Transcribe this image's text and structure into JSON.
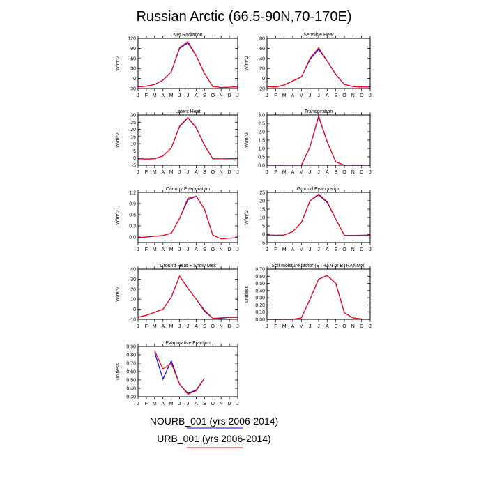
{
  "title": "Russian Arctic (66.5-90N,70-170E)",
  "month_labels": [
    "J",
    "F",
    "M",
    "A",
    "M",
    "J",
    "J",
    "A",
    "S",
    "O",
    "N",
    "D",
    "J"
  ],
  "colors": {
    "series_a": "#0000ff",
    "series_b": "#ff0000",
    "axis": "#000000"
  },
  "legend": [
    {
      "label": "NOURB_001 (yrs 2006-2014)",
      "color": "#0000ff"
    },
    {
      "label": "URB_001 (yrs 2006-2014)",
      "color": "#ff0000"
    }
  ],
  "chart_data": [
    {
      "type": "line",
      "title": "Net Radiation",
      "ylabel": "W/m^2",
      "ylim": [
        -30,
        120
      ],
      "yticks": [
        {
          "v": -30,
          "t": "-30"
        },
        {
          "v": 0,
          "t": "0"
        },
        {
          "v": 30,
          "t": "30"
        },
        {
          "v": 60,
          "t": "60"
        },
        {
          "v": 90,
          "t": "90"
        },
        {
          "v": 120,
          "t": "120"
        }
      ],
      "x": [
        1,
        2,
        3,
        4,
        5,
        6,
        7,
        8,
        9,
        10,
        11,
        12,
        13
      ],
      "series": [
        {
          "name": "NOURB_001 (yrs 2006-2014)",
          "color": "#0000ff",
          "values": [
            -25,
            -23,
            -18,
            -5,
            20,
            90,
            106,
            68,
            15,
            -24,
            -27,
            -26,
            -25
          ]
        },
        {
          "name": "URB_001 (yrs 2006-2014)",
          "color": "#ff0000",
          "values": [
            -25,
            -23,
            -18,
            -5,
            20,
            92,
            110,
            68,
            15,
            -24,
            -27,
            -26,
            -25
          ]
        }
      ]
    },
    {
      "type": "line",
      "title": "Sensible Heat",
      "ylabel": "W/m^2",
      "ylim": [
        -20,
        80
      ],
      "yticks": [
        {
          "v": -20,
          "t": "-20"
        },
        {
          "v": 0,
          "t": "0"
        },
        {
          "v": 20,
          "t": "20"
        },
        {
          "v": 40,
          "t": "40"
        },
        {
          "v": 60,
          "t": "60"
        },
        {
          "v": 80,
          "t": "80"
        }
      ],
      "x": [
        1,
        2,
        3,
        4,
        5,
        6,
        7,
        8,
        9,
        10,
        11,
        12,
        13
      ],
      "series": [
        {
          "name": "NOURB_001 (yrs 2006-2014)",
          "color": "#0000ff",
          "values": [
            -16,
            -17,
            -13,
            -5,
            3,
            38,
            58,
            35,
            8,
            -12,
            -16,
            -17,
            -17
          ]
        },
        {
          "name": "URB_001 (yrs 2006-2014)",
          "color": "#ff0000",
          "values": [
            -16,
            -17,
            -13,
            -5,
            3,
            40,
            61,
            35,
            8,
            -12,
            -16,
            -17,
            -17
          ]
        }
      ]
    },
    {
      "type": "line",
      "title": "Latent Heat",
      "ylabel": "W/m^2",
      "ylim": [
        -5,
        30
      ],
      "yticks": [
        {
          "v": -5,
          "t": "-5"
        },
        {
          "v": 0,
          "t": "0"
        },
        {
          "v": 5,
          "t": "5"
        },
        {
          "v": 10,
          "t": "10"
        },
        {
          "v": 15,
          "t": "15"
        },
        {
          "v": 20,
          "t": "20"
        },
        {
          "v": 25,
          "t": "25"
        },
        {
          "v": 30,
          "t": "30"
        }
      ],
      "x": [
        1,
        2,
        3,
        4,
        5,
        6,
        7,
        8,
        9,
        10,
        11,
        12,
        13
      ],
      "series": [
        {
          "name": "NOURB_001 (yrs 2006-2014)",
          "color": "#0000ff",
          "values": [
            -0.5,
            -0.7,
            -0.5,
            1.5,
            7,
            22,
            28,
            21,
            9,
            -0.5,
            -0.6,
            -0.5,
            -0.4
          ]
        },
        {
          "name": "URB_001 (yrs 2006-2014)",
          "color": "#ff0000",
          "values": [
            -0.5,
            -0.7,
            -0.5,
            1.5,
            7,
            22.3,
            28.3,
            21.3,
            9,
            -0.5,
            -0.6,
            -0.5,
            -0.4
          ]
        }
      ]
    },
    {
      "type": "line",
      "title": "Transpiration",
      "ylabel": "W/m^2",
      "ylim": [
        0,
        3
      ],
      "yticks": [
        {
          "v": 0,
          "t": "0.0"
        },
        {
          "v": 0.5,
          "t": "0.5"
        },
        {
          "v": 1,
          "t": "1.0"
        },
        {
          "v": 1.5,
          "t": "1.5"
        },
        {
          "v": 2,
          "t": "2.0"
        },
        {
          "v": 2.5,
          "t": "2.5"
        },
        {
          "v": 3,
          "t": "3.0"
        }
      ],
      "x": [
        1,
        2,
        3,
        4,
        5,
        6,
        7,
        8,
        9,
        10,
        11,
        12,
        13
      ],
      "series": [
        {
          "name": "NOURB_001 (yrs 2006-2014)",
          "color": "#0000ff",
          "values": [
            0,
            0,
            0,
            0,
            0,
            1.1,
            2.9,
            1.4,
            0.2,
            0,
            0,
            0,
            0
          ]
        },
        {
          "name": "URB_001 (yrs 2006-2014)",
          "color": "#ff0000",
          "values": [
            0,
            0,
            0,
            0,
            0,
            1.1,
            2.95,
            1.4,
            0.2,
            0,
            0,
            0,
            0
          ]
        }
      ]
    },
    {
      "type": "line",
      "title": "Canopy Evaporation",
      "ylabel": "W/m^2",
      "ylim": [
        -0.15,
        1.2
      ],
      "yticks": [
        {
          "v": 0,
          "t": "0.0"
        },
        {
          "v": 0.3,
          "t": "0.3"
        },
        {
          "v": 0.6,
          "t": "0.6"
        },
        {
          "v": 0.9,
          "t": "0.9"
        },
        {
          "v": 1.2,
          "t": "1.2"
        }
      ],
      "x": [
        1,
        2,
        3,
        4,
        5,
        6,
        7,
        8,
        9,
        10,
        11,
        12,
        13
      ],
      "series": [
        {
          "name": "NOURB_001 (yrs 2006-2014)",
          "color": "#0000ff",
          "values": [
            -0.02,
            0,
            0.02,
            0.04,
            0.1,
            0.5,
            1.0,
            1.1,
            0.75,
            0.05,
            -0.05,
            -0.03,
            -0.02
          ]
        },
        {
          "name": "URB_001 (yrs 2006-2014)",
          "color": "#ff0000",
          "values": [
            -0.02,
            0,
            0.02,
            0.04,
            0.1,
            0.5,
            1.04,
            1.1,
            0.75,
            0.05,
            -0.05,
            -0.03,
            -0.02
          ]
        }
      ]
    },
    {
      "type": "line",
      "title": "Ground Evaporation",
      "ylabel": "W/m^2",
      "ylim": [
        -5,
        25
      ],
      "yticks": [
        {
          "v": -5,
          "t": "-5"
        },
        {
          "v": 0,
          "t": "0"
        },
        {
          "v": 5,
          "t": "5"
        },
        {
          "v": 10,
          "t": "10"
        },
        {
          "v": 15,
          "t": "15"
        },
        {
          "v": 20,
          "t": "20"
        },
        {
          "v": 25,
          "t": "25"
        }
      ],
      "x": [
        1,
        2,
        3,
        4,
        5,
        6,
        7,
        8,
        9,
        10,
        11,
        12,
        13
      ],
      "series": [
        {
          "name": "NOURB_001 (yrs 2006-2014)",
          "color": "#0000ff",
          "values": [
            -0.5,
            -0.6,
            -0.5,
            1.5,
            7,
            20,
            23.5,
            19,
            9,
            -0.7,
            -0.7,
            -0.6,
            -0.5
          ]
        },
        {
          "name": "URB_001 (yrs 2006-2014)",
          "color": "#ff0000",
          "values": [
            -0.5,
            -0.6,
            -0.5,
            1.5,
            7,
            20,
            24,
            19.5,
            9,
            -0.7,
            -0.7,
            -0.6,
            -0.5
          ]
        }
      ]
    },
    {
      "type": "line",
      "title": "Ground Heat + Snow Melt",
      "ylabel": "W/m^2",
      "ylim": [
        -10,
        40
      ],
      "yticks": [
        {
          "v": -10,
          "t": "-10"
        },
        {
          "v": 0,
          "t": "0"
        },
        {
          "v": 10,
          "t": "10"
        },
        {
          "v": 20,
          "t": "20"
        },
        {
          "v": 30,
          "t": "30"
        },
        {
          "v": 40,
          "t": "40"
        }
      ],
      "x": [
        1,
        2,
        3,
        4,
        5,
        6,
        7,
        8,
        9,
        10,
        11,
        12,
        13
      ],
      "series": [
        {
          "name": "NOURB_001 (yrs 2006-2014)",
          "color": "#0000ff",
          "values": [
            -8,
            -6,
            -3,
            0,
            12,
            33,
            21,
            10,
            -2,
            -9,
            -9,
            -8,
            -8
          ]
        },
        {
          "name": "URB_001 (yrs 2006-2014)",
          "color": "#ff0000",
          "values": [
            -8,
            -6,
            -3,
            0,
            12,
            33,
            21,
            10,
            -1,
            -9,
            -8.5,
            -8,
            -8
          ]
        }
      ]
    },
    {
      "type": "line",
      "title": "Soil moisture factor (BTRAN or BTRANMN)",
      "ylabel": "unitless",
      "ylim": [
        0,
        0.7
      ],
      "yticks": [
        {
          "v": 0,
          "t": "0.00"
        },
        {
          "v": 0.1,
          "t": "0.10"
        },
        {
          "v": 0.2,
          "t": "0.20"
        },
        {
          "v": 0.3,
          "t": "0.30"
        },
        {
          "v": 0.4,
          "t": "0.40"
        },
        {
          "v": 0.5,
          "t": "0.50"
        },
        {
          "v": 0.6,
          "t": "0.60"
        },
        {
          "v": 0.7,
          "t": "0.70"
        }
      ],
      "x": [
        1,
        2,
        3,
        4,
        5,
        6,
        7,
        8,
        9,
        10,
        11,
        12,
        13
      ],
      "series": [
        {
          "name": "NOURB_001 (yrs 2006-2014)",
          "color": "#0000ff",
          "values": [
            0,
            0,
            0,
            0,
            0.02,
            0.28,
            0.56,
            0.61,
            0.5,
            0.09,
            0.02,
            0.005,
            0
          ]
        },
        {
          "name": "URB_001 (yrs 2006-2014)",
          "color": "#ff0000",
          "values": [
            0,
            0,
            0,
            0,
            0.02,
            0.28,
            0.56,
            0.61,
            0.5,
            0.09,
            0.02,
            0.005,
            0
          ]
        }
      ]
    },
    {
      "type": "line",
      "title": "Evaporative Fraction",
      "ylabel": "unitless",
      "ylim": [
        0.3,
        0.9
      ],
      "yticks": [
        {
          "v": 0.3,
          "t": "0.30"
        },
        {
          "v": 0.4,
          "t": "0.40"
        },
        {
          "v": 0.5,
          "t": "0.50"
        },
        {
          "v": 0.6,
          "t": "0.60"
        },
        {
          "v": 0.7,
          "t": "0.70"
        },
        {
          "v": 0.8,
          "t": "0.80"
        },
        {
          "v": 0.9,
          "t": "0.90"
        }
      ],
      "x": [
        3,
        4,
        5,
        6,
        7,
        8,
        9
      ],
      "series": [
        {
          "name": "NOURB_001 (yrs 2006-2014)",
          "color": "#0000ff",
          "values": [
            0.83,
            0.51,
            0.73,
            0.45,
            0.34,
            0.38,
            0.52
          ]
        },
        {
          "name": "URB_001 (yrs 2006-2014)",
          "color": "#ff0000",
          "values": [
            0.85,
            0.63,
            0.7,
            0.45,
            0.33,
            0.37,
            0.52
          ]
        }
      ]
    }
  ]
}
